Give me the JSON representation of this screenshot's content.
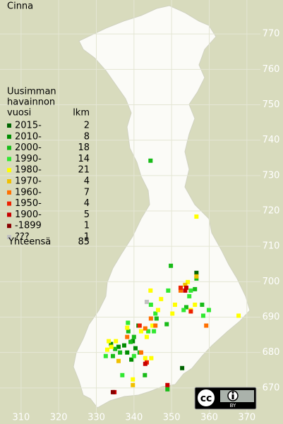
{
  "title": "Cinna",
  "legend": {
    "title_lines": [
      "Uusimman",
      "havainnon",
      "vuosi"
    ],
    "count_header": "lkm",
    "series": [
      {
        "name": "2015-",
        "color": "#006400",
        "count": 2,
        "x": [
          356.6,
          352.8
        ],
        "y": [
          702.5,
          675.6
        ]
      },
      {
        "name": "2010-",
        "color": "#008c00",
        "count": 8,
        "x": [
          335.9,
          337.4,
          339.7,
          340.4,
          338.2,
          333.9,
          339.3,
          341.2
        ],
        "y": [
          681.6,
          682.0,
          683.2,
          681.2,
          680.0,
          682.4,
          678.0,
          687.6
        ]
      },
      {
        "name": "2000-",
        "color": "#18bb18",
        "count": 18,
        "x": [
          344.4,
          349.8,
          356.6,
          358.1,
          346.0,
          348.7,
          338.5,
          340.0,
          334.4,
          335.0,
          341.5,
          342.9,
          345.3,
          353.9,
          356.2,
          339.1,
          336.3,
          348.9
        ],
        "y": [
          734.2,
          704.5,
          700.9,
          693.5,
          689.6,
          688.0,
          686.0,
          684.4,
          679.0,
          681.0,
          680.0,
          673.6,
          687.6,
          692.8,
          697.9,
          683.0,
          680.0,
          669.6
        ]
      },
      {
        "name": "1990-",
        "color": "#30e830",
        "count": 14,
        "x": [
          349.1,
          355.1,
          353.2,
          359.9,
          344.5,
          345.7,
          338.4,
          343.8,
          340.0,
          336.9,
          358.4,
          332.5,
          345.3,
          354.7
        ],
        "y": [
          697.5,
          697.5,
          692.0,
          692.0,
          693.5,
          691.0,
          688.4,
          686.0,
          679.0,
          673.6,
          690.4,
          679.0,
          686.0,
          695.9
        ]
      },
      {
        "name": "1980-",
        "color": "#ffff00",
        "count": 21,
        "x": [
          356.6,
          344.4,
          347.2,
          350.9,
          355.1,
          367.8,
          350.2,
          333.3,
          334.0,
          335.2,
          343.4,
          344.9,
          344.6,
          343.0,
          339.7,
          338.2,
          341.9,
          356.2,
          346.4,
          354.3,
          332.9
        ],
        "y": [
          718.4,
          697.5,
          695.1,
          693.5,
          692.0,
          690.4,
          691.0,
          683.2,
          681.6,
          683.2,
          684.4,
          687.6,
          678.4,
          678.4,
          672.4,
          687.0,
          686.0,
          693.5,
          692.0,
          699.9,
          680.8
        ]
      },
      {
        "name": "1970-",
        "color": "#f0c000",
        "count": 4,
        "x": [
          353.6,
          356.6,
          335.9,
          339.7
        ],
        "y": [
          699.1,
          701.5,
          677.6,
          670.8
        ]
      },
      {
        "name": "1960-",
        "color": "#ff7000",
        "count": 7,
        "x": [
          343.0,
          344.5,
          341.9,
          338.2,
          352.4,
          359.2,
          345.7
        ],
        "y": [
          686.8,
          689.6,
          680.0,
          684.4,
          697.5,
          687.6,
          687.6
        ]
      },
      {
        "name": "1950-",
        "color": "#ee2200",
        "count": 4,
        "x": [
          352.4,
          355.1,
          343.4,
          341.5
        ],
        "y": [
          698.3,
          691.6,
          677.2,
          687.6
        ]
      },
      {
        "name": "1900-",
        "color": "#c80000",
        "count": 5,
        "x": [
          353.9,
          353.6,
          343.0,
          348.9,
          334.8
        ],
        "y": [
          698.3,
          697.5,
          676.8,
          670.8,
          668.8
        ]
      },
      {
        "name": "-1899",
        "color": "#880000",
        "count": 1,
        "x": [
          334.4
        ],
        "y": [
          668.8
        ]
      },
      {
        "name": "???",
        "color": "#c0c0c0",
        "count": 1,
        "x": [
          343.4
        ],
        "y": [
          694.3
        ]
      }
    ],
    "total_label": "Yhteensä",
    "total": 85
  },
  "map": {
    "xlim": [
      304.4,
      379.6
    ],
    "ylim": [
      659.8,
      779.6
    ],
    "xticks": [
      310,
      320,
      330,
      340,
      350,
      360,
      370
    ],
    "yticks": [
      670,
      680,
      690,
      700,
      710,
      720,
      730,
      740,
      750,
      760,
      770
    ]
  },
  "badge": {
    "icon": "cc",
    "label": "BY"
  }
}
